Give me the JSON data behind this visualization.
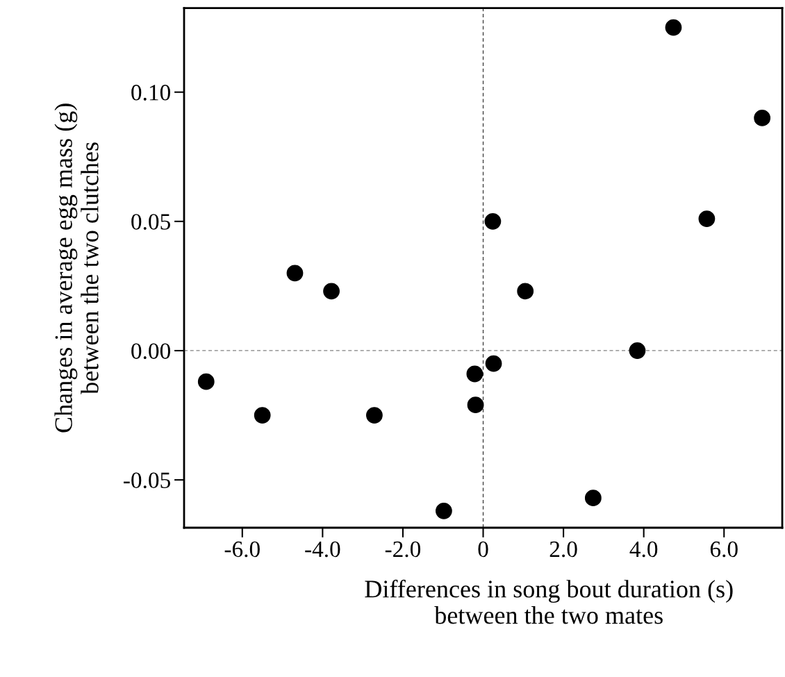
{
  "chart_data": {
    "type": "scatter",
    "xlabel": "Differences in song bout duration (s)\nbetween the two mates",
    "ylabel": "Changes in average egg mass (g)\nbetween the two clutches",
    "x": [
      -6.9,
      -5.5,
      -4.69,
      -3.78,
      -2.71,
      -0.98,
      -0.21,
      -0.19,
      0.24,
      0.26,
      1.05,
      2.74,
      3.84,
      4.74,
      5.57,
      6.95
    ],
    "series": [
      {
        "color": "#000000",
        "values": [
          -0.012,
          -0.025,
          0.03,
          0.023,
          -0.025,
          -0.062,
          -0.009,
          -0.021,
          0.05,
          -0.005,
          0.023,
          -0.057,
          0.0,
          0.125,
          0.051,
          0.09
        ]
      }
    ],
    "marker": "circle",
    "xlim": [
      -7.45,
      7.45
    ],
    "xticks": [
      {
        "value": -6,
        "label": "-6.0"
      },
      {
        "value": -4,
        "label": "-4.0"
      },
      {
        "value": -2,
        "label": "-2.0"
      },
      {
        "value": 0,
        "label": "0"
      },
      {
        "value": 2,
        "label": "2.0"
      },
      {
        "value": 4,
        "label": "4.0"
      },
      {
        "value": 6,
        "label": "6.0"
      }
    ],
    "ylim": [
      -0.0685,
      0.1325
    ],
    "yticks": [
      {
        "value": -0.05,
        "label": "-0.05"
      },
      {
        "value": 0,
        "label": "0.00"
      },
      {
        "value": 0.05,
        "label": "0.05"
      },
      {
        "value": 0.1,
        "label": "0.10"
      }
    ],
    "ref_lines": [
      {
        "axis": "x",
        "value": 0,
        "color": "#333333",
        "line_style": "dashed"
      },
      {
        "axis": "y",
        "value": 0,
        "color": "#808080",
        "line_style": "dashed"
      }
    ],
    "grid": false,
    "legend": false
  }
}
